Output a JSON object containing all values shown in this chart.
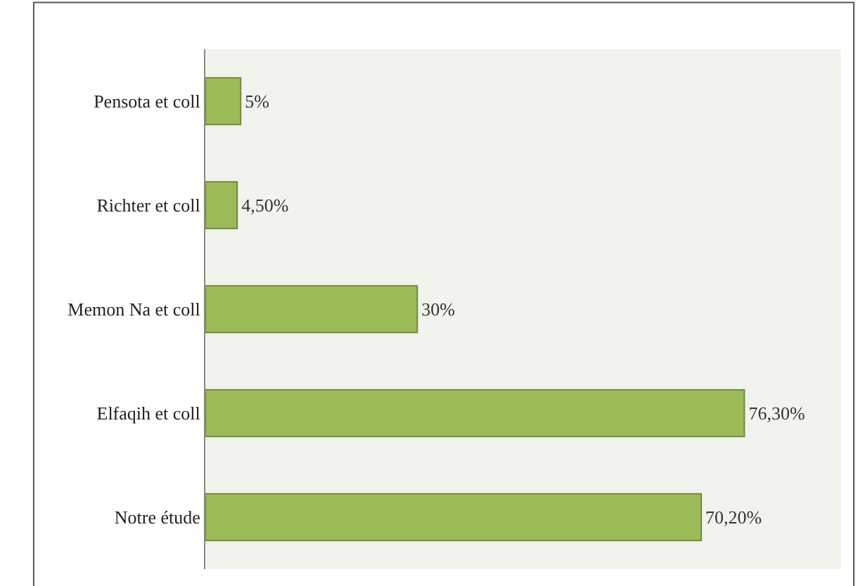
{
  "chart_data": {
    "type": "bar",
    "orientation": "horizontal",
    "categories": [
      "Pensota et coll",
      "Richter et coll",
      "Memon Na et coll",
      "Elfaqih et coll",
      "Notre étude"
    ],
    "values": [
      5,
      4.5,
      30,
      76.3,
      70.2
    ],
    "value_labels": [
      "5%",
      "4,50%",
      "30%",
      "76,30%",
      "70,20%"
    ],
    "color": "#9bbb59",
    "xlim": [
      0,
      90
    ],
    "tick_labels": "y"
  }
}
